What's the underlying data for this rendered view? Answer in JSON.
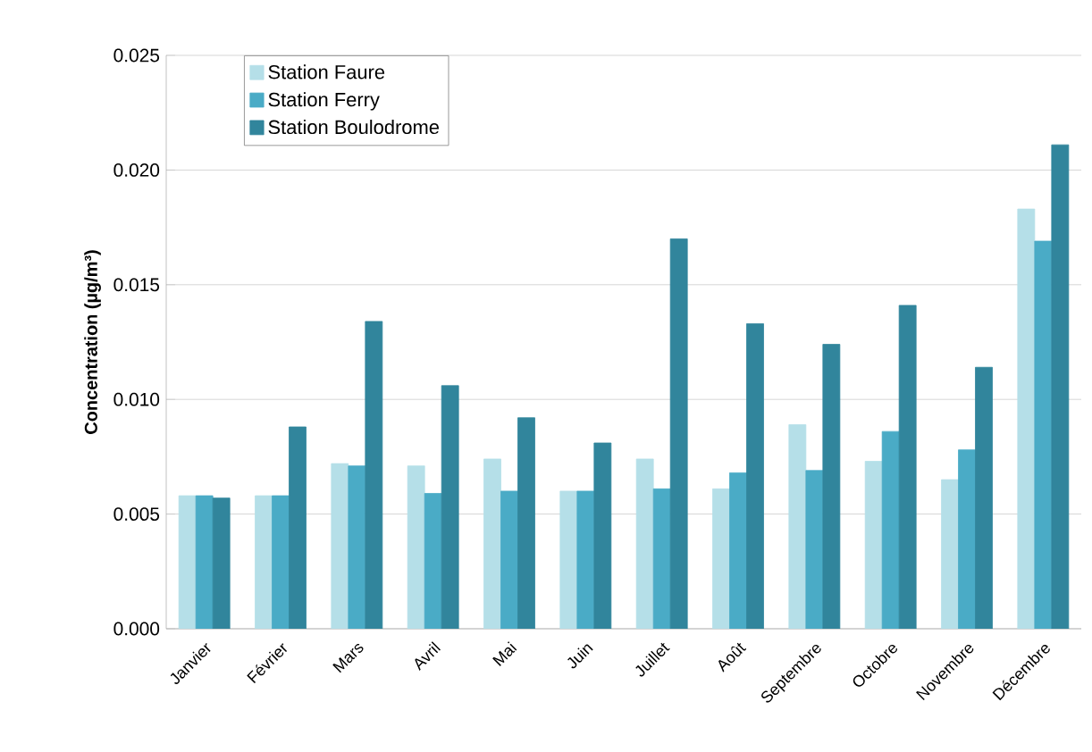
{
  "chart_data": {
    "type": "bar",
    "ylabel": "Concentration (µg/m³)",
    "categories": [
      "Janvier",
      "Février",
      "Mars",
      "Avril",
      "Mai",
      "Juin",
      "Juillet",
      "Août",
      "Septembre",
      "Octobre",
      "Novembre",
      "Décembre"
    ],
    "series": [
      {
        "name": "Station Faure",
        "color": "#b5dfe8",
        "values": [
          0.0058,
          0.0058,
          0.0072,
          0.0071,
          0.0074,
          0.006,
          0.0074,
          0.0061,
          0.0089,
          0.0073,
          0.0065,
          0.0183
        ]
      },
      {
        "name": "Station Ferry",
        "color": "#4aabc6",
        "values": [
          0.0058,
          0.0058,
          0.0071,
          0.0059,
          0.006,
          0.006,
          0.0061,
          0.0068,
          0.0069,
          0.0086,
          0.0078,
          0.0169
        ]
      },
      {
        "name": "Station Boulodrome",
        "color": "#31859c",
        "values": [
          0.0057,
          0.0088,
          0.0134,
          0.0106,
          0.0092,
          0.0081,
          0.017,
          0.0133,
          0.0124,
          0.0141,
          0.0114,
          0.0211
        ]
      }
    ],
    "ylim": [
      0,
      0.025
    ],
    "yticks": [
      {
        "value": 0,
        "label": "0.000"
      },
      {
        "value": 0.005,
        "label": "0.005"
      },
      {
        "value": 0.01,
        "label": "0.010"
      },
      {
        "value": 0.015,
        "label": "0.015"
      },
      {
        "value": 0.02,
        "label": "0.020"
      },
      {
        "value": 0.025,
        "label": "0.025"
      }
    ],
    "grid": "y",
    "legend": "top left"
  }
}
